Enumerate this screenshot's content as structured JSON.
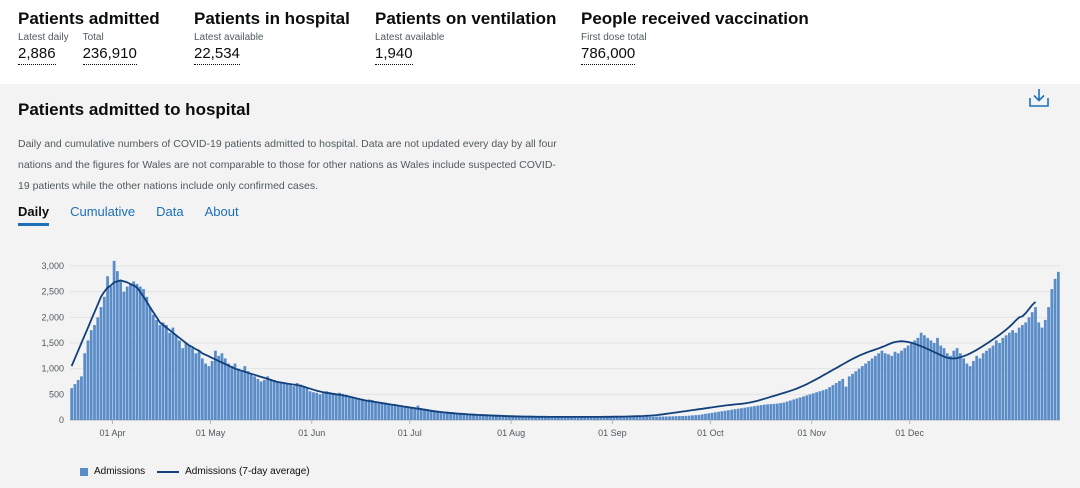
{
  "headlines": [
    {
      "title": "Patients admitted",
      "metrics": [
        {
          "label": "Latest daily",
          "value": "2,886"
        },
        {
          "label": "Total",
          "value": "236,910"
        }
      ]
    },
    {
      "title": "Patients in hospital",
      "metrics": [
        {
          "label": "Latest available",
          "value": "22,534"
        }
      ]
    },
    {
      "title": "Patients on ventilation",
      "metrics": [
        {
          "label": "Latest available",
          "value": "1,940"
        }
      ]
    },
    {
      "title": "People received vaccination",
      "metrics": [
        {
          "label": "First dose total",
          "value": "786,000"
        }
      ]
    }
  ],
  "card": {
    "title": "Patients admitted to hospital",
    "description": "Daily and cumulative numbers of COVID-19 patients admitted to hospital. Data are not updated every day by all four nations and the figures for Wales are not comparable to those for other nations as Wales include suspected COVID-19 patients while the other nations include only confirmed cases.",
    "download_icon": "download-icon",
    "tabs": [
      {
        "label": "Daily",
        "active": true
      },
      {
        "label": "Cumulative",
        "active": false
      },
      {
        "label": "Data",
        "active": false
      },
      {
        "label": "About",
        "active": false
      }
    ]
  },
  "chart_data": {
    "type": "bar",
    "x_start": "2020-03-19",
    "x_end": "2020-12-29",
    "ylim": [
      0,
      3000
    ],
    "yticks": [
      0,
      500,
      1000,
      1500,
      2000,
      2500,
      3000
    ],
    "ytick_labels": [
      "0",
      "500",
      "1,000",
      "1,500",
      "2,000",
      "2,500",
      "3,000"
    ],
    "xticks": [
      {
        "date": "2020-04-01",
        "label": "01 Apr"
      },
      {
        "date": "2020-05-01",
        "label": "01 May"
      },
      {
        "date": "2020-06-01",
        "label": "01 Jun"
      },
      {
        "date": "2020-07-01",
        "label": "01 Jul"
      },
      {
        "date": "2020-08-01",
        "label": "01 Aug"
      },
      {
        "date": "2020-09-01",
        "label": "01 Sep"
      },
      {
        "date": "2020-10-01",
        "label": "01 Oct"
      },
      {
        "date": "2020-11-01",
        "label": "01 Nov"
      },
      {
        "date": "2020-12-01",
        "label": "01 Dec"
      }
    ],
    "grid": true,
    "legend_position": "bottom-left",
    "colors": {
      "bars": "#5a8cc8",
      "line": "#12407a"
    },
    "series": [
      {
        "name": "Admissions",
        "type": "bar",
        "values": [
          620,
          700,
          780,
          850,
          1300,
          1550,
          1750,
          1850,
          2000,
          2200,
          2400,
          2800,
          2600,
          3100,
          2900,
          2700,
          2500,
          2600,
          2650,
          2700,
          2650,
          2600,
          2550,
          2400,
          2200,
          2050,
          1950,
          1850,
          1900,
          1850,
          1700,
          1800,
          1650,
          1550,
          1400,
          1500,
          1450,
          1400,
          1300,
          1350,
          1200,
          1100,
          1050,
          1150,
          1350,
          1250,
          1300,
          1200,
          1100,
          1050,
          1100,
          1000,
          950,
          1050,
          950,
          900,
          850,
          800,
          750,
          780,
          850,
          800,
          780,
          760,
          750,
          720,
          700,
          680,
          660,
          720,
          690,
          650,
          620,
          560,
          540,
          530,
          500,
          520,
          560,
          540,
          520,
          500,
          530,
          510,
          490,
          460,
          440,
          420,
          400,
          380,
          370,
          400,
          390,
          360,
          330,
          350,
          340,
          320,
          300,
          310,
          290,
          280,
          270,
          260,
          250,
          240,
          280,
          230,
          220,
          210,
          200,
          190,
          180,
          170,
          165,
          160,
          155,
          150,
          145,
          140,
          135,
          130,
          125,
          120,
          118,
          116,
          114,
          112,
          110,
          108,
          106,
          104,
          100,
          98,
          96,
          94,
          92,
          90,
          88,
          86,
          84,
          82,
          80,
          78,
          76,
          74,
          72,
          70,
          69,
          68,
          67,
          66,
          65,
          64,
          64,
          63,
          63,
          62,
          62,
          62,
          61,
          61,
          61,
          60,
          60,
          60,
          60,
          60,
          60,
          60,
          60,
          61,
          61,
          62,
          62,
          63,
          63,
          64,
          65,
          66,
          67,
          68,
          69,
          70,
          72,
          74,
          76,
          78,
          80,
          85,
          90,
          95,
          100,
          110,
          120,
          130,
          140,
          150,
          160,
          170,
          180,
          190,
          200,
          210,
          220,
          230,
          240,
          250,
          260,
          270,
          280,
          290,
          300,
          305,
          310,
          315,
          320,
          330,
          340,
          360,
          380,
          400,
          420,
          440,
          460,
          480,
          500,
          520,
          540,
          560,
          580,
          600,
          640,
          680,
          720,
          760,
          800,
          650,
          850,
          900,
          950,
          1000,
          1050,
          1100,
          1150,
          1200,
          1250,
          1300,
          1350,
          1300,
          1280,
          1250,
          1330,
          1300,
          1350,
          1400,
          1450,
          1500,
          1550,
          1600,
          1700,
          1650,
          1600,
          1550,
          1500,
          1600,
          1450,
          1400,
          1300,
          1250,
          1350,
          1400,
          1300,
          1200,
          1100,
          1050,
          1150,
          1250,
          1200,
          1300,
          1350,
          1400,
          1450,
          1550,
          1500,
          1600,
          1650,
          1700,
          1750,
          1700,
          1800,
          1850,
          1900,
          2000,
          2100,
          2200,
          1900,
          1800,
          1950,
          2200,
          2550,
          2750,
          2886
        ]
      },
      {
        "name": "Admissions (7-day average)",
        "type": "line",
        "values": [
          1050,
          1200,
          1350,
          1500,
          1650,
          1800,
          1950,
          2100,
          2250,
          2400,
          2500,
          2580,
          2620,
          2680,
          2700,
          2720,
          2700,
          2680,
          2650,
          2620,
          2580,
          2500,
          2400,
          2300,
          2200,
          2100,
          2000,
          1900,
          1850,
          1800,
          1750,
          1700,
          1650,
          1600,
          1550,
          1500,
          1450,
          1420,
          1380,
          1350,
          1300,
          1270,
          1240,
          1210,
          1180,
          1150,
          1120,
          1090,
          1060,
          1030,
          1000,
          980,
          960,
          940,
          920,
          900,
          880,
          860,
          840,
          820,
          800,
          780,
          760,
          740,
          730,
          720,
          710,
          700,
          690,
          680,
          670,
          650,
          630,
          610,
          590,
          570,
          555,
          540,
          530,
          520,
          510,
          500,
          490,
          480,
          470,
          455,
          440,
          425,
          410,
          395,
          380,
          370,
          360,
          350,
          340,
          330,
          320,
          310,
          300,
          290,
          280,
          270,
          260,
          250,
          240,
          230,
          220,
          210,
          200,
          190,
          180,
          170,
          162,
          155,
          148,
          142,
          136,
          130,
          125,
          120,
          116,
          112,
          108,
          104,
          100,
          97,
          94,
          91,
          88,
          85,
          82,
          79,
          77,
          75,
          73,
          71,
          69,
          68,
          67,
          66,
          65,
          64,
          63,
          63,
          62,
          62,
          61,
          61,
          60,
          60,
          60,
          60,
          60,
          60,
          60,
          60,
          60,
          60,
          60,
          60,
          60,
          61,
          61,
          62,
          62,
          63,
          64,
          65,
          66,
          67,
          68,
          70,
          72,
          74,
          76,
          78,
          81,
          85,
          90,
          96,
          103,
          111,
          120,
          129,
          138,
          147,
          156,
          165,
          174,
          183,
          192,
          201,
          210,
          219,
          228,
          237,
          246,
          255,
          264,
          273,
          282,
          290,
          297,
          303,
          309,
          316,
          324,
          334,
          346,
          360,
          376,
          394,
          413,
          432,
          451,
          470,
          489,
          508,
          527,
          547,
          568,
          590,
          614,
          640,
          668,
          698,
          730,
          763,
          797,
          832,
          868,
          904,
          940,
          976,
          1012,
          1048,
          1084,
          1120,
          1156,
          1190,
          1222,
          1252,
          1280,
          1306,
          1330,
          1352,
          1374,
          1396,
          1420,
          1446,
          1474,
          1500,
          1520,
          1530,
          1535,
          1530,
          1520,
          1505,
          1485,
          1462,
          1437,
          1410,
          1382,
          1353,
          1323,
          1293,
          1263,
          1236,
          1214,
          1200,
          1198,
          1206,
          1222,
          1243,
          1268,
          1297,
          1330,
          1366,
          1404,
          1444,
          1485,
          1527,
          1570,
          1614,
          1660,
          1708,
          1760,
          1815,
          1875,
          1940,
          2000,
          2020,
          2080,
          2160,
          2240,
          2300
        ]
      }
    ]
  }
}
